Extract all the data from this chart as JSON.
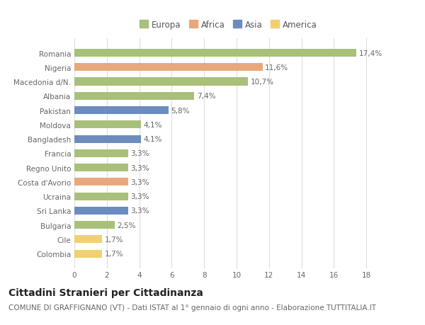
{
  "categories": [
    "Colombia",
    "Cile",
    "Bulgaria",
    "Sri Lanka",
    "Ucraina",
    "Costa d'Avorio",
    "Regno Unito",
    "Francia",
    "Bangladesh",
    "Moldova",
    "Pakistan",
    "Albania",
    "Macedonia d/N.",
    "Nigeria",
    "Romania"
  ],
  "values": [
    1.7,
    1.7,
    2.5,
    3.3,
    3.3,
    3.3,
    3.3,
    3.3,
    4.1,
    4.1,
    5.8,
    7.4,
    10.7,
    11.6,
    17.4
  ],
  "labels": [
    "1,7%",
    "1,7%",
    "2,5%",
    "3,3%",
    "3,3%",
    "3,3%",
    "3,3%",
    "3,3%",
    "4,1%",
    "4,1%",
    "5,8%",
    "7,4%",
    "10,7%",
    "11,6%",
    "17,4%"
  ],
  "continents": [
    "America",
    "America",
    "Europa",
    "Asia",
    "Europa",
    "Africa",
    "Europa",
    "Europa",
    "Asia",
    "Europa",
    "Asia",
    "Europa",
    "Europa",
    "Africa",
    "Europa"
  ],
  "colors": {
    "Europa": "#a8c07a",
    "Africa": "#e8a87c",
    "Asia": "#6b8cbf",
    "America": "#f0d070"
  },
  "legend_order": [
    "Europa",
    "Africa",
    "Asia",
    "America"
  ],
  "title": "Cittadini Stranieri per Cittadinanza",
  "subtitle": "COMUNE DI GRAFFIGNANO (VT) - Dati ISTAT al 1° gennaio di ogni anno - Elaborazione TUTTITALIA.IT",
  "xlim": [
    0,
    19
  ],
  "xticks": [
    0,
    2,
    4,
    6,
    8,
    10,
    12,
    14,
    16,
    18
  ],
  "bg_color": "#ffffff",
  "grid_color": "#dddddd",
  "bar_height": 0.55,
  "title_fontsize": 10,
  "subtitle_fontsize": 7.5,
  "label_fontsize": 7.5,
  "tick_fontsize": 7.5,
  "legend_fontsize": 8.5
}
